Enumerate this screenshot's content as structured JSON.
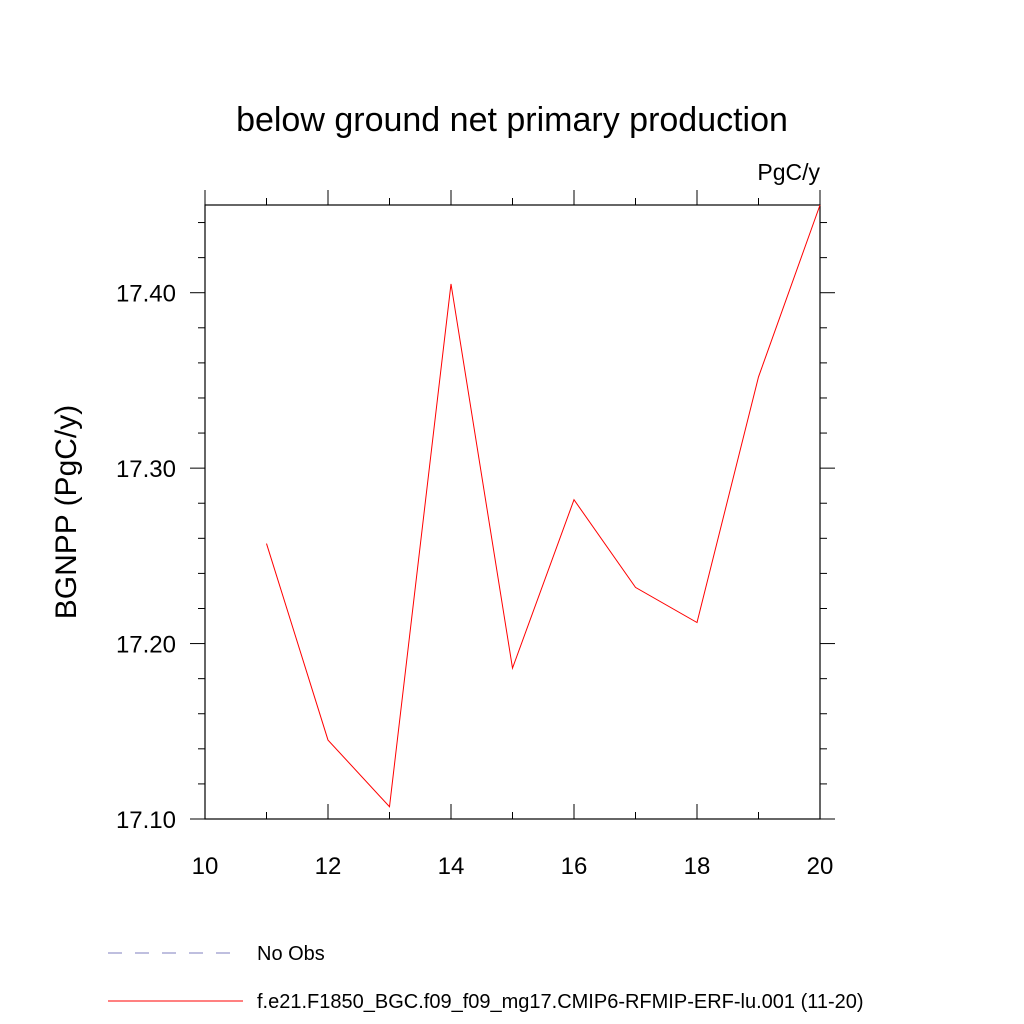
{
  "chart_data": {
    "type": "line",
    "title": "below ground net primary production",
    "units_label": "PgC/y",
    "ylabel": "BGNPP  (PgC/y)",
    "xlabel": "",
    "xlim": [
      10,
      20
    ],
    "ylim": [
      17.1,
      17.45
    ],
    "x_ticks": [
      10,
      12,
      14,
      16,
      18,
      20
    ],
    "x_tick_labels": [
      "10",
      "12",
      "14",
      "16",
      "18",
      "20"
    ],
    "y_ticks": [
      17.1,
      17.2,
      17.3,
      17.4
    ],
    "y_tick_labels": [
      "17.10",
      "17.20",
      "17.30",
      "17.40"
    ],
    "grid": false,
    "legend_position": "bottom",
    "series": [
      {
        "name": "f.e21.F1850_BGC.f09_f09_mg17.CMIP6-RFMIP-ERF-lu.001 (11-20)",
        "color": "#ff0000",
        "style": "solid",
        "x": [
          11,
          12,
          13,
          14,
          15,
          16,
          17,
          18,
          19,
          20
        ],
        "values": [
          17.257,
          17.145,
          17.107,
          17.405,
          17.186,
          17.282,
          17.232,
          17.212,
          17.352,
          17.45
        ]
      }
    ],
    "legend": [
      {
        "label": "No Obs",
        "color": "#7f7fbf",
        "style": "dashed"
      },
      {
        "label": "f.e21.F1850_BGC.f09_f09_mg17.CMIP6-RFMIP-ERF-lu.001 (11-20)",
        "color": "#ff0000",
        "style": "solid"
      }
    ]
  }
}
